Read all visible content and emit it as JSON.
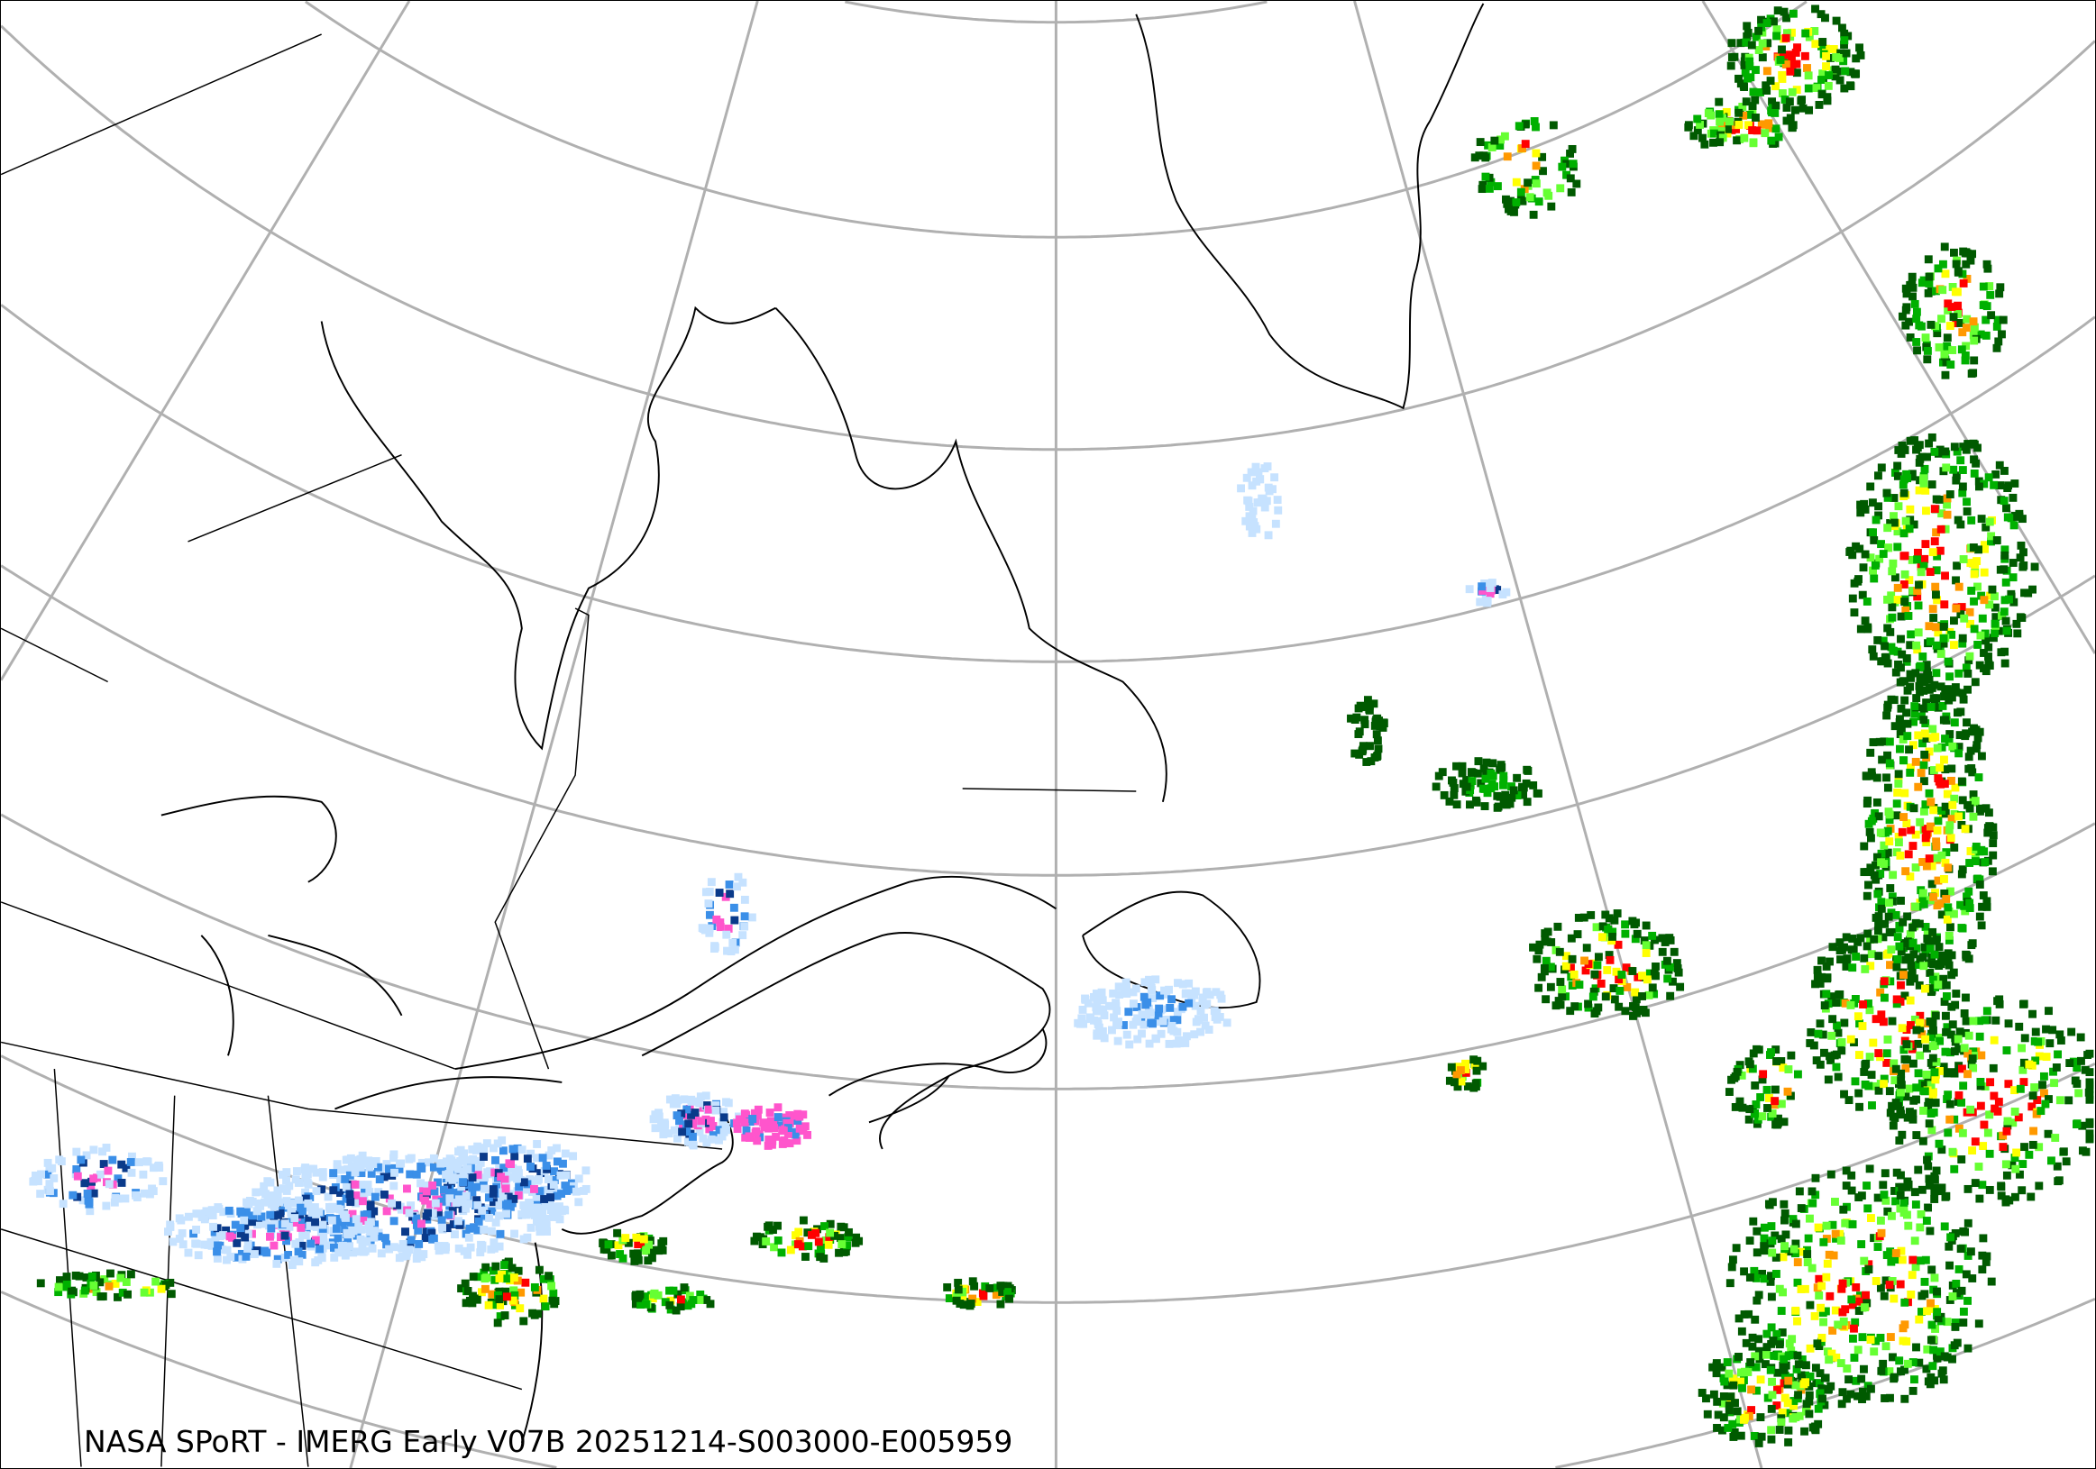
{
  "caption": "NASA SPoRT - IMERG Early V07B 20251214-S003000-E005959",
  "colors": {
    "graticule": "#b0b0b0",
    "coastline": "#000000",
    "precip_light_blue": "#c6e2ff",
    "precip_blue": "#3b8fe8",
    "precip_dark_blue": "#0a3a8a",
    "precip_pink": "#ff55cc",
    "precip_dark_green": "#005a00",
    "precip_green": "#00b000",
    "precip_light_green": "#66ff33",
    "precip_yellow": "#ffff00",
    "precip_orange": "#ff9900",
    "precip_red": "#ff0000"
  },
  "legend": []
}
